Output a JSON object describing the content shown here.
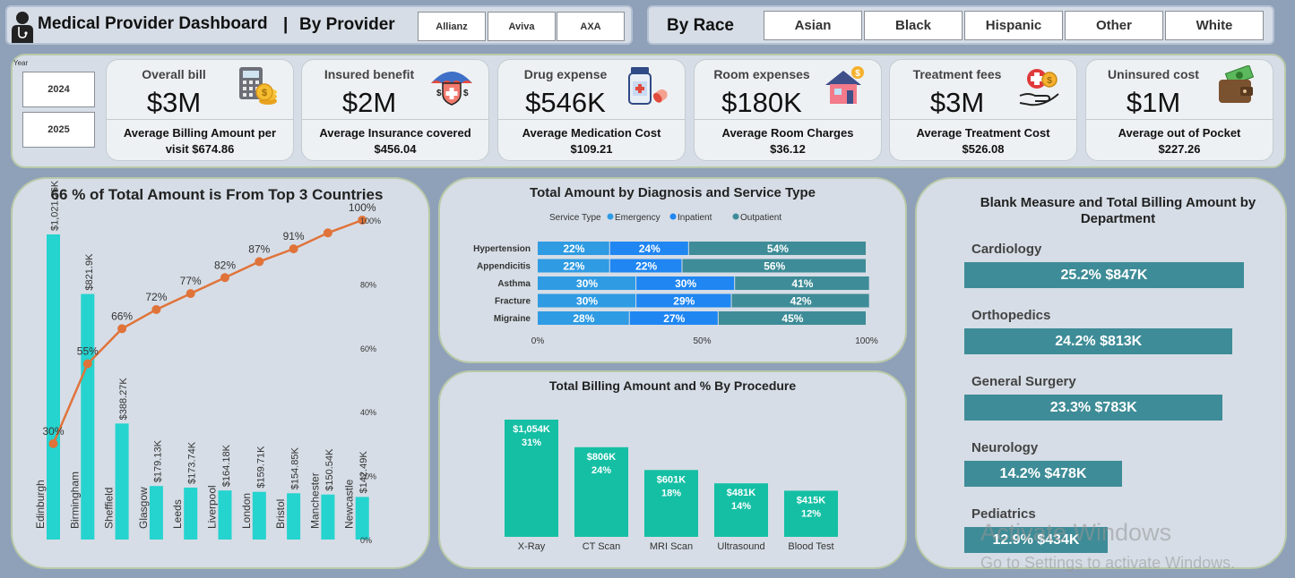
{
  "header": {
    "title": "Medical Provider Dashboard",
    "separator": "|",
    "provider_label": "By Provider",
    "providers": [
      "Allianz",
      "Aviva",
      "AXA"
    ],
    "race_label": "By Race",
    "races": [
      "Asian",
      "Black",
      "Hispanic",
      "Other",
      "White"
    ]
  },
  "year_filter": {
    "label": "Year",
    "options": [
      "2024",
      "2025"
    ]
  },
  "kpis": [
    {
      "label": "Overall bill",
      "value": "$3M",
      "sub1": "Average Billing Amount per",
      "sub2": "visit $674.86",
      "icon": "calculator-coins-icon"
    },
    {
      "label": "Insured benefit",
      "value": "$2M",
      "sub1": "Average Insurance covered",
      "sub2": "$456.04",
      "icon": "umbrella-shield-icon"
    },
    {
      "label": "Drug expense",
      "value": "$546K",
      "sub1": "Average Medication Cost",
      "sub2": "$109.21",
      "icon": "medicine-bottle-icon"
    },
    {
      "label": "Room expenses",
      "value": "$180K",
      "sub1": "Average Room Charges",
      "sub2": "$36.12",
      "icon": "house-dollar-icon"
    },
    {
      "label": "Treatment fees",
      "value": "$3M",
      "sub1": "Average Treatment Cost",
      "sub2": "$526.08",
      "icon": "hand-medical-coin-icon"
    },
    {
      "label": "Uninsured cost",
      "value": "$1M",
      "sub1": "Average out of Pocket",
      "sub2": "$227.26",
      "icon": "wallet-cash-icon"
    }
  ],
  "pareto": {
    "title": "66 % of Total Amount is From Top 3 Countries",
    "y2_ticks": [
      "100%",
      "80%",
      "60%",
      "40%",
      "20%",
      "0%"
    ]
  },
  "diagnosis": {
    "title": "Total Amount by Diagnosis and Service Type",
    "legend_title": "Service Type",
    "x_ticks": [
      "0%",
      "50%",
      "100%"
    ]
  },
  "procedure": {
    "title": "Total Billing Amount and % By Procedure"
  },
  "department": {
    "title_line1": "Blank Measure and Total Billing Amount by",
    "title_line2": "Department"
  },
  "watermark": {
    "line1": "Activate Windows",
    "line2": "Go to Settings to activate Windows."
  },
  "chart_data": [
    {
      "type": "bar",
      "subtype": "pareto",
      "title": "66 % of Total Amount is From Top 3 Countries",
      "categories": [
        "Edinburgh",
        "Birmingham",
        "Sheffield",
        "Glasgow",
        "Leeds",
        "Liverpool",
        "London",
        "Bristol",
        "Manchester",
        "Newcastle"
      ],
      "series": [
        {
          "name": "Total Amount",
          "values": [
            1021.26,
            821.9,
            388.27,
            179.13,
            173.74,
            164.18,
            159.71,
            154.85,
            150.54,
            142.49
          ],
          "labels": [
            "$1,021.26K",
            "$821.9K",
            "$388.27K",
            "$179.13K",
            "$173.74K",
            "$164.18K",
            "$159.71K",
            "$154.85K",
            "$150.54K",
            "$142.49K"
          ]
        },
        {
          "values": [
            30,
            55,
            66,
            72,
            77,
            82,
            87,
            91,
            96,
            100
          ],
          "labels": [
            "30%",
            "55%",
            "66%",
            "72%",
            "77%",
            "82%",
            "87%",
            "91%",
            "",
            "100%"
          ]
        }
      ],
      "y2lim": [
        0,
        100
      ],
      "colors": {
        "bar": "#25d3cf",
        "line": "#e0733a"
      }
    },
    {
      "type": "bar",
      "subtype": "stacked-100-horizontal",
      "title": "Total Amount by Diagnosis and Service Type",
      "categories": [
        "Hypertension",
        "Appendicitis",
        "Asthma",
        "Fracture",
        "Migraine"
      ],
      "series": [
        {
          "name": "Emergency",
          "values": [
            22,
            22,
            30,
            30,
            28
          ],
          "color": "#2f9be3"
        },
        {
          "name": "Inpatient",
          "values": [
            24,
            22,
            30,
            29,
            27
          ],
          "color": "#1f86f2"
        },
        {
          "name": "Outpatient",
          "values": [
            54,
            56,
            41,
            42,
            45
          ],
          "color": "#3e8c97"
        }
      ],
      "xlim": [
        0,
        100
      ]
    },
    {
      "type": "bar",
      "title": "Total Billing Amount and % By Procedure",
      "categories": [
        "X-Ray",
        "CT Scan",
        "MRI Scan",
        "Ultrasound",
        "Blood Test"
      ],
      "values": [
        1054,
        806,
        601,
        481,
        415
      ],
      "amount_labels": [
        "$1,054K",
        "$806K",
        "$601K",
        "$481K",
        "$415K"
      ],
      "pct_labels": [
        "31%",
        "24%",
        "18%",
        "14%",
        "12%"
      ],
      "color": "#15bfa4"
    },
    {
      "type": "bar",
      "subtype": "horizontal",
      "title": "Blank Measure and Total Billing Amount by Department",
      "categories": [
        "Cardiology",
        "Orthopedics",
        "General Surgery",
        "Neurology",
        "Pediatrics"
      ],
      "values": [
        847,
        813,
        783,
        478,
        434
      ],
      "labels": [
        "25.2% $847K",
        "24.2% $813K",
        "23.3% $783K",
        "14.2% $478K",
        "12.9% $434K"
      ],
      "color": "#3e8c97"
    }
  ]
}
